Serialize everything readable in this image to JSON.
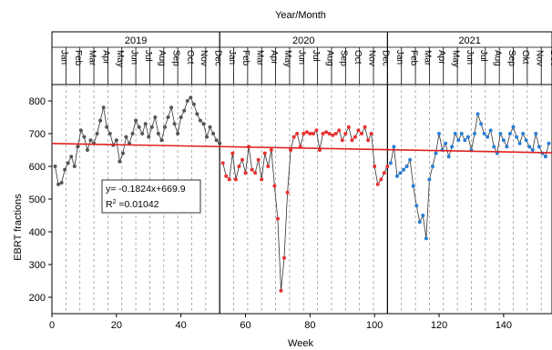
{
  "chart_data": {
    "type": "scatter",
    "top_axis_title": "Year/Month",
    "xlabel": "Week",
    "ylabel": "EBRT fractions",
    "xlim": [
      0,
      155
    ],
    "ylim": [
      150,
      850
    ],
    "x_ticks": [
      0,
      20,
      40,
      60,
      80,
      100,
      120,
      140
    ],
    "y_ticks": [
      200,
      300,
      400,
      500,
      600,
      700,
      800
    ],
    "years": [
      {
        "label": "2019",
        "start_week": 0,
        "end_week": 52
      },
      {
        "label": "2020",
        "start_week": 52,
        "end_week": 104
      },
      {
        "label": "2021",
        "start_week": 104,
        "end_week": 155
      }
    ],
    "months": [
      [
        "Jan",
        "Feb",
        "Mar",
        "Apr",
        "May",
        "Jun",
        "Jul",
        "Aug",
        "Sep",
        "Oct",
        "Nov",
        "Dec"
      ],
      [
        "Jan",
        "Feb",
        "Mar",
        "Apr",
        "May",
        "Jun",
        "Jul",
        "Aug",
        "Sep",
        "Oct",
        "Nov",
        "Dec"
      ],
      [
        "Jan",
        "Feb",
        "Mar",
        "Apr",
        "May",
        "Jun",
        "Jul",
        "Aug",
        "Sep",
        "Okt",
        "Nov",
        "Dec"
      ]
    ],
    "grid": "dashed vertical month lines",
    "trendline": {
      "slope": -0.1824,
      "intercept": 669.9,
      "color": "#e02020"
    },
    "annotation": {
      "equation": "y= -0.1824x+669.9",
      "r2_prefix": "R",
      "r2_sup": "2",
      "r2_value": " =0.01042"
    },
    "series": [
      {
        "color": "#555555",
        "x": [
          1,
          2,
          3,
          4,
          5,
          6,
          7,
          8,
          9,
          10,
          11,
          12,
          13,
          14,
          15,
          16,
          17,
          18,
          19,
          20,
          21,
          22,
          23,
          24,
          25,
          26,
          27,
          28,
          29,
          30,
          31,
          32,
          33,
          34,
          35,
          36,
          37,
          38,
          39,
          40,
          41,
          42,
          43,
          44,
          45,
          46,
          47,
          48,
          49,
          50,
          51,
          52
        ],
        "y": [
          600,
          545,
          550,
          590,
          610,
          630,
          600,
          660,
          710,
          690,
          650,
          680,
          670,
          700,
          740,
          780,
          720,
          700,
          665,
          680,
          615,
          640,
          690,
          670,
          700,
          740,
          720,
          700,
          730,
          690,
          720,
          750,
          700,
          680,
          720,
          750,
          780,
          730,
          700,
          750,
          770,
          800,
          810,
          790,
          760,
          740,
          730,
          690,
          720,
          700,
          680,
          670
        ]
      },
      {
        "color": "#e83030",
        "x": [
          53,
          54,
          55,
          56,
          57,
          58,
          59,
          60,
          61,
          62,
          63,
          64,
          65,
          66,
          67,
          68,
          69,
          70,
          71,
          72,
          73,
          74,
          75,
          76,
          77,
          78,
          79,
          80,
          81,
          82,
          83,
          84,
          85,
          86,
          87,
          88,
          89,
          90,
          91,
          92,
          93,
          94,
          95,
          96,
          97,
          98,
          99,
          100,
          101,
          102,
          103,
          104
        ],
        "y": [
          610,
          570,
          560,
          640,
          560,
          600,
          620,
          580,
          660,
          590,
          580,
          620,
          560,
          640,
          600,
          650,
          540,
          440,
          220,
          320,
          520,
          650,
          690,
          700,
          660,
          700,
          705,
          700,
          700,
          710,
          650,
          700,
          705,
          700,
          695,
          700,
          710,
          680,
          700,
          720,
          680,
          690,
          710,
          700,
          720,
          680,
          700,
          600,
          545,
          560,
          580,
          600
        ]
      },
      {
        "color": "#2a7fd4",
        "x": [
          105,
          106,
          107,
          108,
          109,
          110,
          111,
          112,
          113,
          114,
          115,
          116,
          117,
          118,
          119,
          120,
          121,
          122,
          123,
          124,
          125,
          126,
          127,
          128,
          129,
          130,
          131,
          132,
          133,
          134,
          135,
          136,
          137,
          138,
          139,
          140,
          141,
          142,
          143,
          144,
          145,
          146,
          147,
          148,
          149,
          150,
          151,
          152,
          153,
          154
        ],
        "y": [
          610,
          660,
          570,
          580,
          590,
          600,
          620,
          540,
          480,
          430,
          450,
          380,
          560,
          600,
          640,
          700,
          650,
          670,
          630,
          660,
          700,
          680,
          700,
          680,
          690,
          650,
          700,
          760,
          730,
          700,
          690,
          710,
          660,
          640,
          700,
          680,
          660,
          700,
          720,
          690,
          670,
          700,
          680,
          660,
          650,
          700,
          660,
          640,
          630,
          670
        ]
      }
    ]
  }
}
